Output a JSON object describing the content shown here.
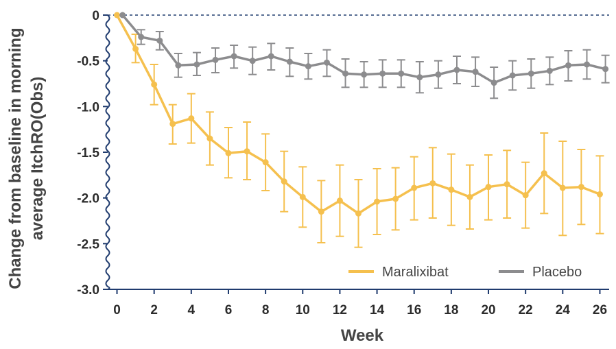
{
  "chart_data": {
    "type": "line",
    "title": "",
    "xlabel": "Week",
    "ylabel": [
      "Change from baseline in morning",
      "average ItchRO(Obs)"
    ],
    "xlim": [
      -0.5,
      26.5
    ],
    "ylim": [
      -3.0,
      0.0
    ],
    "xticks": [
      0,
      2,
      4,
      6,
      8,
      10,
      12,
      14,
      16,
      18,
      20,
      22,
      24,
      26
    ],
    "yticks": [
      0,
      -0.5,
      -1.0,
      -1.5,
      -2.0,
      -2.5,
      -3.0
    ],
    "ytick_labels": [
      "0",
      "-0.5",
      "-1.0",
      "-1.5",
      "-2.0",
      "-2.5",
      "-3.0"
    ],
    "legend_position": "bottom-right",
    "zero_reference_line": true,
    "axis_break": "y-axis",
    "series": [
      {
        "name": "Maralixibat",
        "color": "#f5c04e",
        "x": [
          0,
          1,
          2,
          3,
          4,
          5,
          6,
          7,
          8,
          9,
          10,
          11,
          12,
          13,
          14,
          15,
          16,
          17,
          18,
          19,
          20,
          21,
          22,
          23,
          24,
          25,
          26
        ],
        "y": [
          0,
          -0.37,
          -0.76,
          -1.19,
          -1.13,
          -1.35,
          -1.51,
          -1.49,
          -1.61,
          -1.82,
          -1.99,
          -2.15,
          -2.03,
          -2.17,
          -2.04,
          -2.01,
          -1.89,
          -1.84,
          -1.91,
          -1.99,
          -1.88,
          -1.85,
          -1.97,
          -1.73,
          -1.89,
          -1.88,
          -1.96
        ],
        "error_low": [
          0,
          -0.52,
          -0.98,
          -1.41,
          -1.4,
          -1.64,
          -1.78,
          -1.8,
          -1.92,
          -2.15,
          -2.32,
          -2.49,
          -2.42,
          -2.54,
          -2.4,
          -2.35,
          -2.24,
          -2.22,
          -2.3,
          -2.34,
          -2.24,
          -2.22,
          -2.33,
          -2.17,
          -2.41,
          -2.29,
          -2.39
        ],
        "error_high": [
          0,
          -0.21,
          -0.54,
          -0.98,
          -0.86,
          -1.06,
          -1.23,
          -1.17,
          -1.3,
          -1.49,
          -1.66,
          -1.81,
          -1.64,
          -1.8,
          -1.68,
          -1.67,
          -1.55,
          -1.45,
          -1.52,
          -1.64,
          -1.53,
          -1.48,
          -1.61,
          -1.29,
          -1.38,
          -1.47,
          -1.54
        ]
      },
      {
        "name": "Placebo",
        "color": "#8c8c8e",
        "x": [
          0.3,
          1.3,
          2.3,
          3.3,
          4.3,
          5.3,
          6.3,
          7.3,
          8.3,
          9.3,
          10.3,
          11.3,
          12.3,
          13.3,
          14.3,
          15.3,
          16.3,
          17.3,
          18.3,
          19.3,
          20.3,
          21.3,
          22.3,
          23.3,
          24.3,
          25.3,
          26.3
        ],
        "y": [
          0,
          -0.24,
          -0.28,
          -0.55,
          -0.54,
          -0.49,
          -0.45,
          -0.5,
          -0.45,
          -0.51,
          -0.56,
          -0.52,
          -0.64,
          -0.65,
          -0.64,
          -0.64,
          -0.68,
          -0.65,
          -0.6,
          -0.62,
          -0.74,
          -0.66,
          -0.64,
          -0.61,
          -0.55,
          -0.54,
          -0.59
        ],
        "error_low": [
          0,
          -0.32,
          -0.38,
          -0.68,
          -0.66,
          -0.63,
          -0.58,
          -0.65,
          -0.6,
          -0.67,
          -0.7,
          -0.67,
          -0.79,
          -0.79,
          -0.79,
          -0.79,
          -0.85,
          -0.8,
          -0.75,
          -0.78,
          -0.91,
          -0.82,
          -0.8,
          -0.76,
          -0.72,
          -0.7,
          -0.74
        ],
        "error_high": [
          0,
          -0.16,
          -0.18,
          -0.42,
          -0.41,
          -0.36,
          -0.33,
          -0.35,
          -0.31,
          -0.36,
          -0.42,
          -0.38,
          -0.48,
          -0.51,
          -0.49,
          -0.49,
          -0.51,
          -0.5,
          -0.45,
          -0.46,
          -0.57,
          -0.5,
          -0.48,
          -0.46,
          -0.39,
          -0.38,
          -0.44
        ]
      }
    ]
  },
  "colors": {
    "axis": "#1f3b6e",
    "tick_text": "#2b2b2b",
    "axis_title": "#444444"
  }
}
